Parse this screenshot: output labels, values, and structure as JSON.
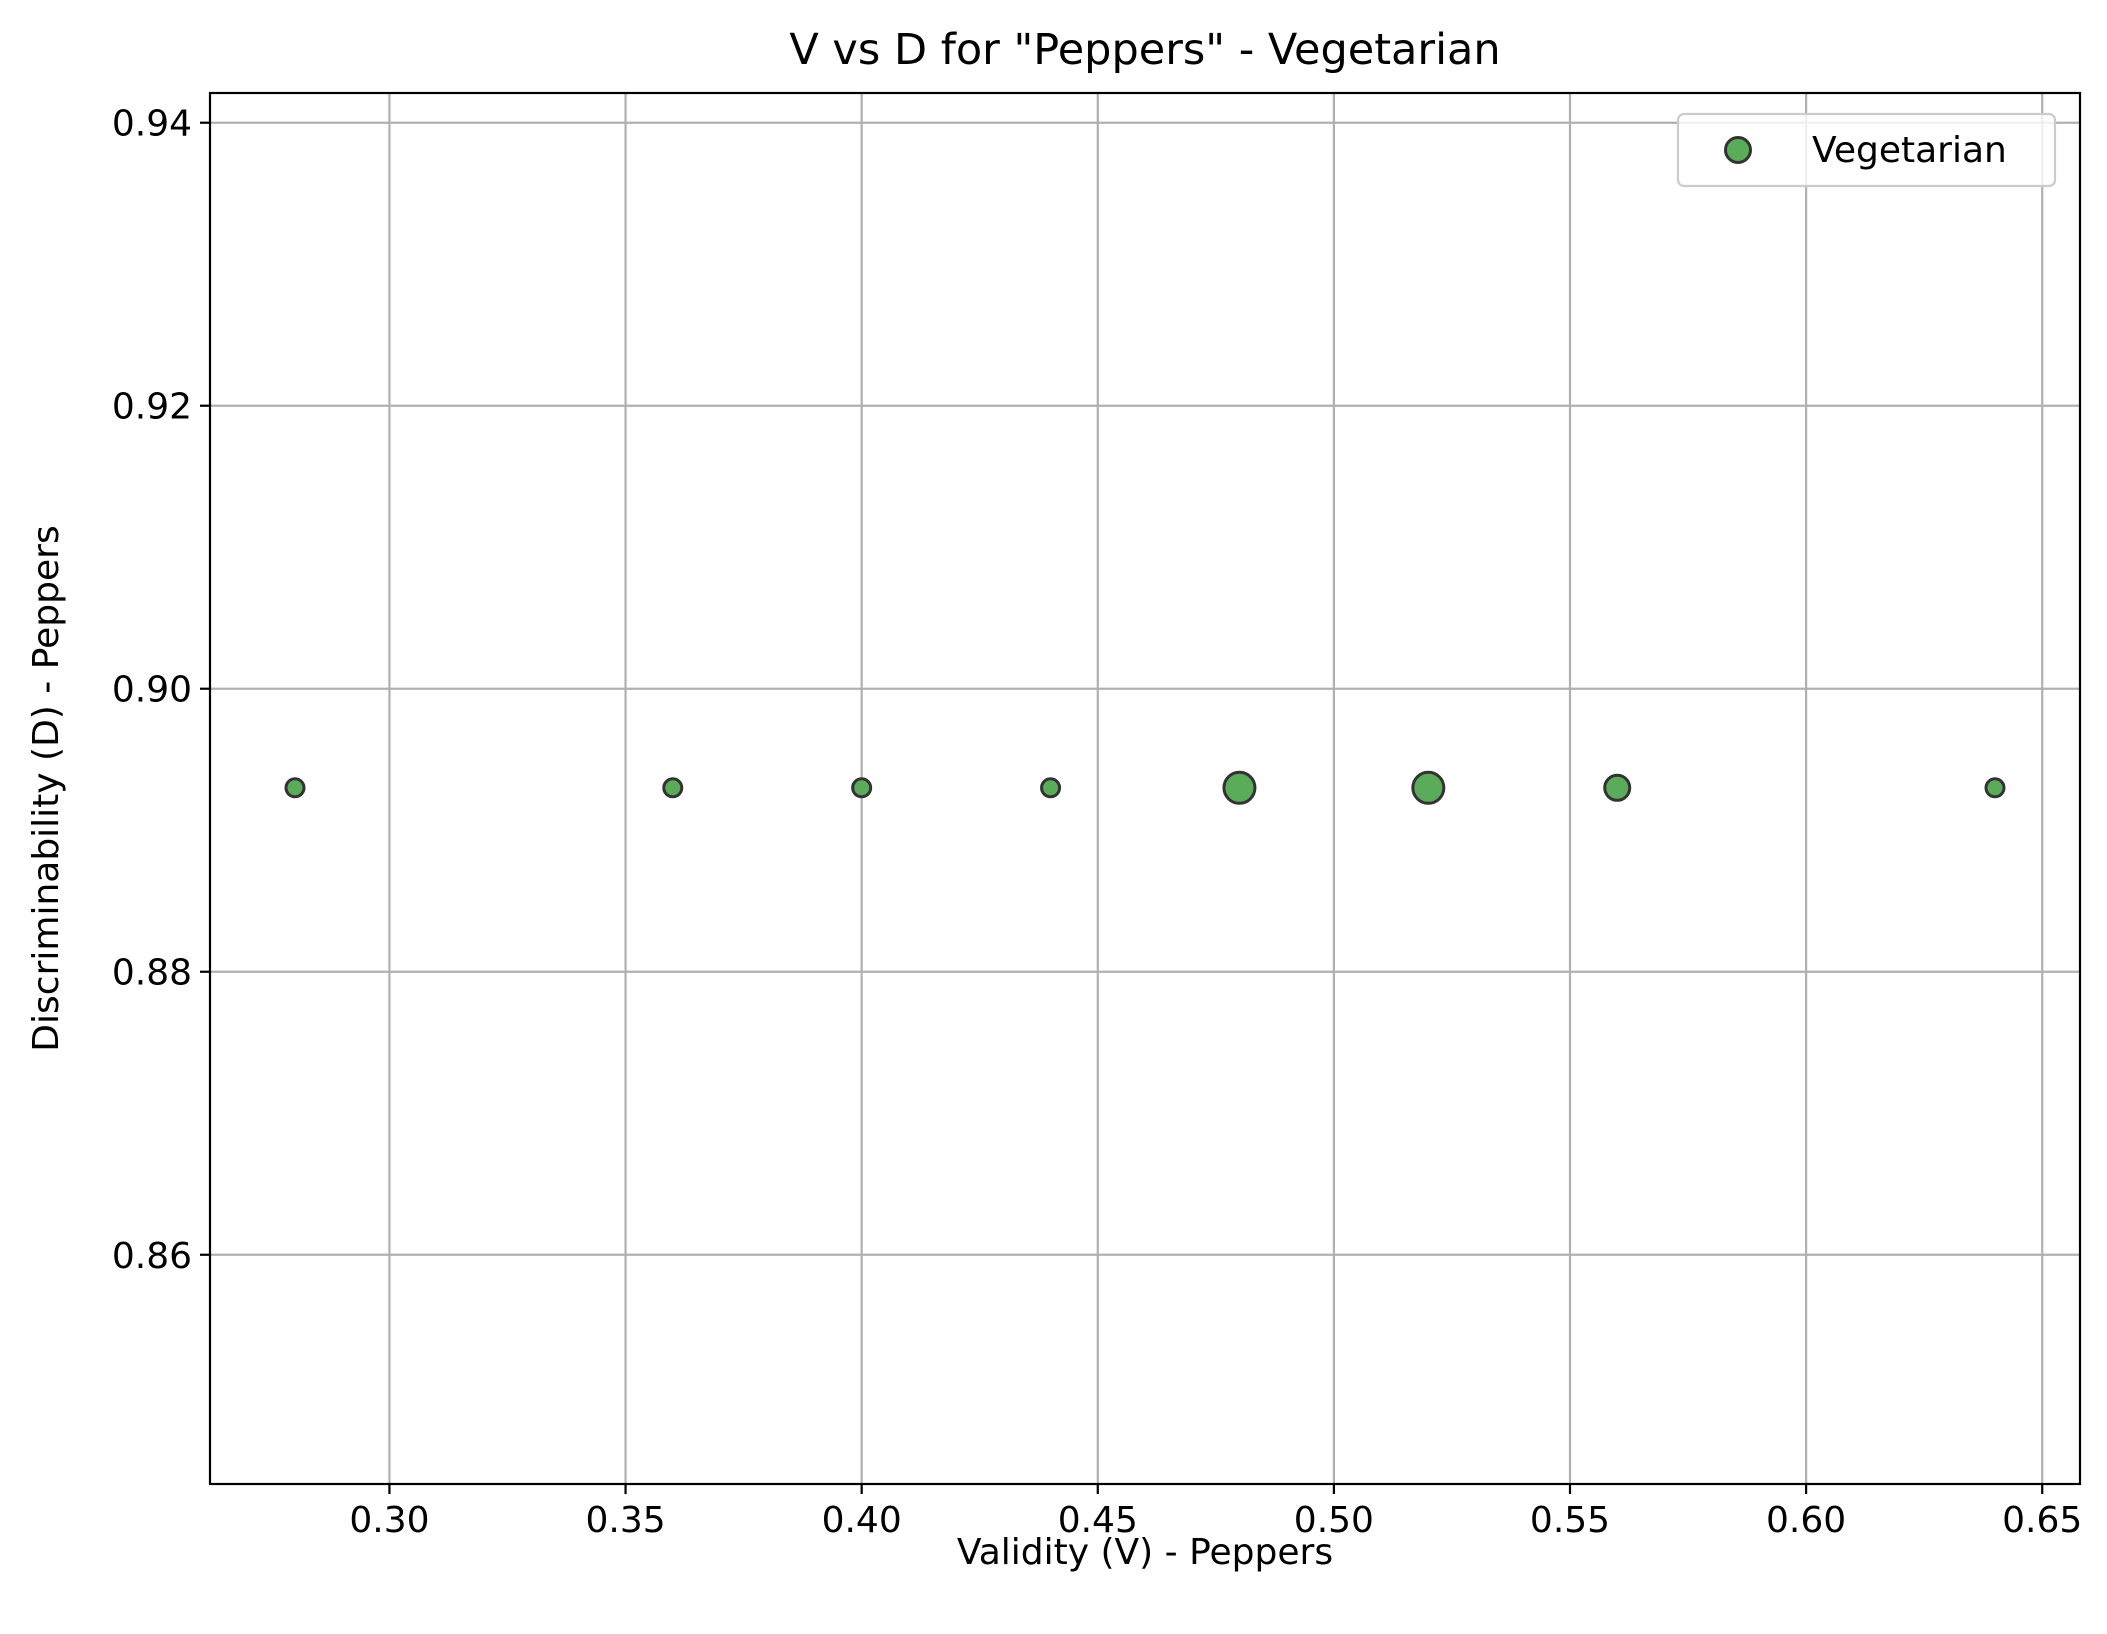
{
  "chart_data": {
    "type": "scatter",
    "title": "V vs D for \"Peppers\" - Vegetarian",
    "xlabel": "Validity (V) - Peppers",
    "ylabel": "Discriminability (D) - Peppers",
    "xlim": [
      0.262,
      0.658
    ],
    "ylim": [
      0.8438,
      0.9421
    ],
    "xticks": [
      0.3,
      0.35,
      0.4,
      0.45,
      0.5,
      0.55,
      0.6,
      0.65
    ],
    "xtick_labels": [
      "0.30",
      "0.35",
      "0.40",
      "0.45",
      "0.50",
      "0.55",
      "0.60",
      "0.65"
    ],
    "yticks": [
      0.86,
      0.88,
      0.9,
      0.92,
      0.94
    ],
    "ytick_labels": [
      "0.86",
      "0.88",
      "0.90",
      "0.92",
      "0.94"
    ],
    "grid": true,
    "legend": {
      "position": "top-right",
      "entries": [
        "Vegetarian"
      ]
    },
    "series": [
      {
        "name": "Vegetarian",
        "color": "#5aac5a",
        "edge_color": "#333333",
        "points": [
          {
            "x": 0.28,
            "y": 0.893,
            "size": "small"
          },
          {
            "x": 0.36,
            "y": 0.893,
            "size": "small"
          },
          {
            "x": 0.4,
            "y": 0.893,
            "size": "small"
          },
          {
            "x": 0.44,
            "y": 0.893,
            "size": "small"
          },
          {
            "x": 0.48,
            "y": 0.893,
            "size": "large"
          },
          {
            "x": 0.52,
            "y": 0.893,
            "size": "large"
          },
          {
            "x": 0.56,
            "y": 0.893,
            "size": "medium"
          },
          {
            "x": 0.64,
            "y": 0.893,
            "size": "small"
          }
        ]
      }
    ]
  }
}
